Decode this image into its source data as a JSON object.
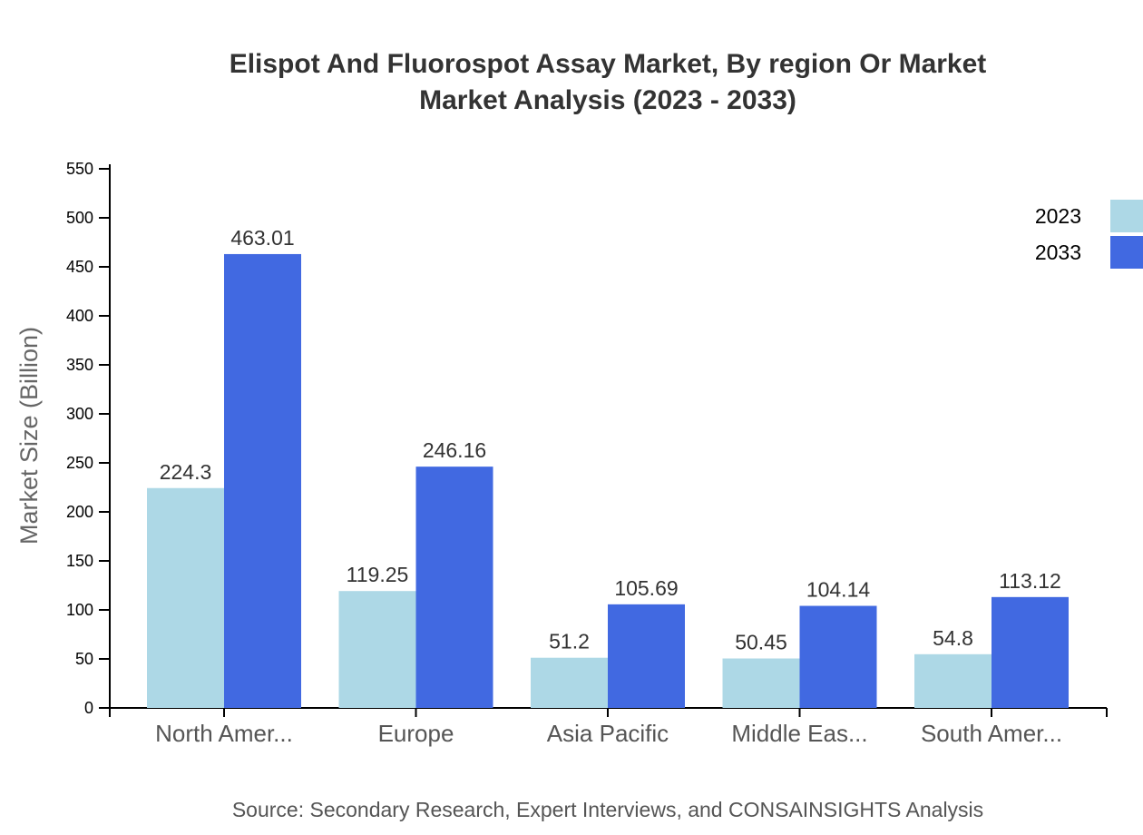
{
  "chart_data": {
    "type": "bar",
    "title_lines": [
      "Elispot And Fluorospot Assay Market, By region Or Market",
      "Market Analysis (2023 - 2033)"
    ],
    "ylabel": "Market Size (Billion)",
    "xlabel": "",
    "ylim": [
      0,
      550
    ],
    "yticks": [
      0,
      50,
      100,
      150,
      200,
      250,
      300,
      350,
      400,
      450,
      500,
      550
    ],
    "categories": [
      "North Amer...",
      "Europe",
      "Asia Pacific",
      "Middle Eas...",
      "South Amer..."
    ],
    "series": [
      {
        "name": "2023",
        "color": "#add8e6",
        "values": [
          224.3,
          119.25,
          51.2,
          50.45,
          54.8
        ]
      },
      {
        "name": "2033",
        "color": "#4169e1",
        "values": [
          463.01,
          246.16,
          105.69,
          104.14,
          113.12
        ]
      }
    ],
    "legend_position": "top-right",
    "grid": false,
    "source": "Source: Secondary Research, Expert Interviews, and CONSAINSIGHTS Analysis"
  }
}
